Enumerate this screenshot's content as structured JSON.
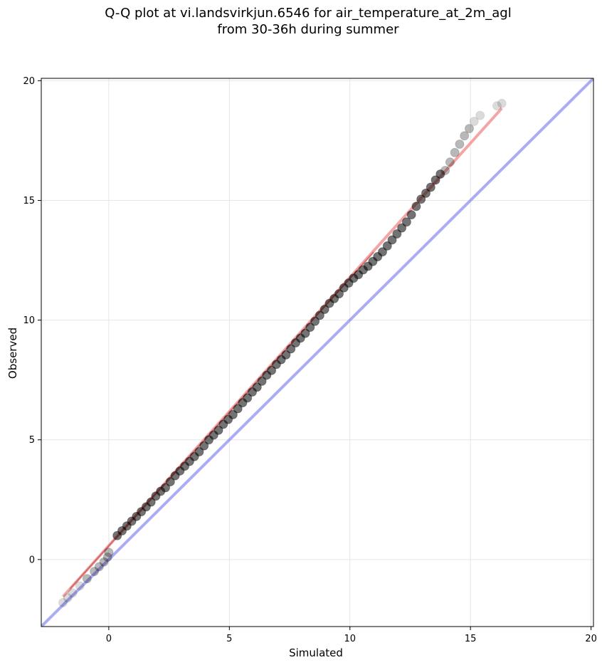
{
  "chart_data": {
    "type": "scatter",
    "title": "Q-Q plot at vi.landsvirkjun.6546 for air_temperature_at_2m_agl",
    "subtitle": "from 30-36h during summer",
    "xlabel": "Simulated",
    "ylabel": "Observed",
    "xlim": [
      -2.8,
      20.1
    ],
    "ylim": [
      -2.8,
      20.1
    ],
    "x_ticks": [
      0,
      5,
      10,
      15,
      20
    ],
    "y_ticks": [
      0,
      5,
      10,
      15,
      20
    ],
    "grid": true,
    "colors": {
      "points": "#000000",
      "fit_line": "#f08080",
      "identity_line": "#8080f0",
      "grid": "#e6e6e6"
    },
    "series": [
      {
        "kind": "quantiles",
        "x": [
          -1.9,
          -1.7,
          -1.5,
          -1.2,
          -0.9,
          -0.6,
          -0.4,
          -0.2,
          -0.05,
          0.0,
          0.35,
          0.55,
          0.75,
          0.95,
          1.15,
          1.35,
          1.55,
          1.75,
          1.95,
          2.15,
          2.35,
          2.55,
          2.75,
          2.95,
          3.15,
          3.35,
          3.55,
          3.75,
          3.95,
          4.15,
          4.35,
          4.55,
          4.75,
          4.95,
          5.15,
          5.35,
          5.55,
          5.75,
          5.95,
          6.15,
          6.35,
          6.55,
          6.75,
          6.95,
          7.15,
          7.35,
          7.55,
          7.75,
          7.95,
          8.15,
          8.35,
          8.55,
          8.75,
          8.95,
          9.15,
          9.35,
          9.55,
          9.75,
          9.95,
          10.15,
          10.35,
          10.55,
          10.75,
          10.95,
          11.15,
          11.35,
          11.55,
          11.75,
          11.95,
          12.15,
          12.35,
          12.55,
          12.75,
          12.95,
          13.15,
          13.35,
          13.55,
          13.75,
          13.95,
          14.15,
          14.35,
          14.55,
          14.75,
          14.95,
          15.15,
          15.4,
          16.1,
          16.3
        ],
        "y": [
          -1.8,
          -1.6,
          -1.4,
          -1.1,
          -0.8,
          -0.5,
          -0.3,
          -0.1,
          0.1,
          0.3,
          1.0,
          1.2,
          1.4,
          1.6,
          1.8,
          2.0,
          2.2,
          2.4,
          2.65,
          2.85,
          3.0,
          3.25,
          3.5,
          3.7,
          3.9,
          4.1,
          4.3,
          4.5,
          4.75,
          5.0,
          5.2,
          5.4,
          5.65,
          5.85,
          6.05,
          6.3,
          6.55,
          6.75,
          7.0,
          7.2,
          7.45,
          7.7,
          7.9,
          8.15,
          8.35,
          8.55,
          8.8,
          9.05,
          9.25,
          9.45,
          9.7,
          9.95,
          10.2,
          10.45,
          10.7,
          10.9,
          11.1,
          11.35,
          11.55,
          11.75,
          11.9,
          12.1,
          12.25,
          12.45,
          12.65,
          12.85,
          13.1,
          13.35,
          13.6,
          13.85,
          14.1,
          14.4,
          14.75,
          15.05,
          15.3,
          15.55,
          15.85,
          16.1,
          16.25,
          16.6,
          17.0,
          17.35,
          17.7,
          18.0,
          18.3,
          18.55,
          18.95,
          19.05
        ]
      },
      {
        "kind": "fit_line",
        "x": [
          -1.9,
          16.3
        ],
        "y": [
          -1.55,
          18.85
        ]
      },
      {
        "kind": "identity_line",
        "x": [
          -2.8,
          20.1
        ],
        "y": [
          -2.8,
          20.1
        ]
      }
    ]
  }
}
